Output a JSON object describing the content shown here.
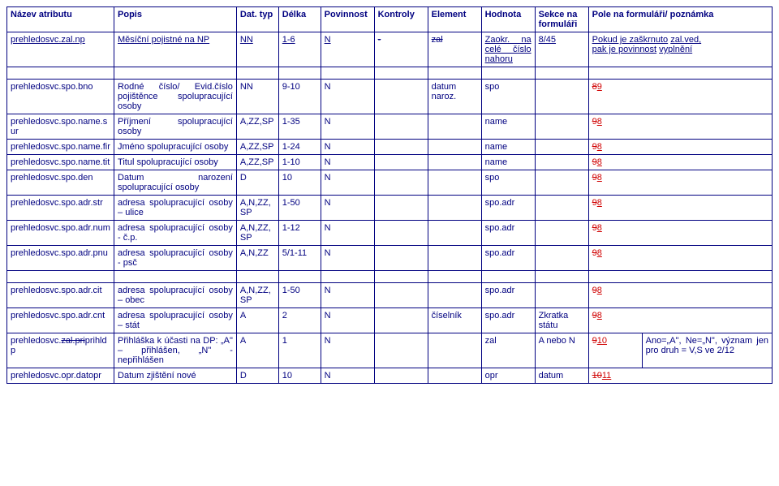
{
  "header": {
    "c1": "Název atributu",
    "c2": "Popis",
    "c3": "Dat. typ",
    "c4": "Délka",
    "c5": "Povinnost",
    "c6": "Kontroly",
    "c7": "Element",
    "c8": "Hodnota",
    "c9_line1": "Sekce na",
    "c9_line2": "formuláři",
    "c10_line1": "Pole na formuláři/",
    "c10_line2": "poznámka"
  },
  "r0": {
    "name": "prehledosvc.zal.np",
    "popis": "Měsíční pojistné na NP",
    "typ": "NN",
    "delka": "1-6",
    "pov": "N",
    "kont_strike": "-",
    "elem_strike": "zal",
    "hod_a": "Zaokr. na",
    "hod_b": "celé číslo",
    "hod_c": "nahoru",
    "sekce": "8/45",
    "pole_a": "Pokud je zaškrnuto",
    "pole_b": "zal.ved,",
    "pole_c": "pak je povinnost",
    "pole_d": "vyplnění"
  },
  "r1": {
    "name": "prehledosvc.spo.bno",
    "popis": "Rodné číslo/ Evid.číslo pojištěnce spolupracující osoby",
    "typ": "NN",
    "delka": "9-10",
    "pov": "N",
    "elem": "datum naroz.",
    "hod": "spo",
    "sekce_s": "8",
    "sekce_n": "9"
  },
  "r2": {
    "name": "prehledosvc.spo.name.sur",
    "popis": "Příjmení spolupracující osoby",
    "typ": "A,ZZ,SP",
    "delka": "1-35",
    "pov": "N",
    "hod": "name",
    "pole_s": "9",
    "pole_n": "8"
  },
  "r3": {
    "name": "prehledosvc.spo.name.fir",
    "popis": "Jméno spolupracující osoby",
    "typ": "A,ZZ,SP",
    "delka": "1-24",
    "pov": "N",
    "hod": "name",
    "pole_s": "9",
    "pole_n": "8"
  },
  "r4": {
    "name": "prehledosvc.spo.name.tit",
    "popis": "Titul spolupracující osoby",
    "typ": "A,ZZ,SP",
    "delka": "1-10",
    "pov": "N",
    "hod": "name",
    "pole_s": "9",
    "pole_n": "8"
  },
  "r5": {
    "name": "prehledosvc.spo.den",
    "popis": "Datum narození spolupracující osoby",
    "typ": "D",
    "delka": "10",
    "pov": "N",
    "hod": "spo",
    "pole_s": "9",
    "pole_n": "8"
  },
  "r6": {
    "name": "prehledosvc.spo.adr.str",
    "popis": "adresa spolupracující osoby – ulice",
    "typ": "A,N,ZZ,SP",
    "delka": "1-50",
    "pov": "N",
    "hod": "spo.adr",
    "pole_s": "9",
    "pole_n": "8"
  },
  "r7": {
    "name": "prehledosvc.spo.adr.num",
    "popis": "adresa spolupracující osoby - č.p.",
    "typ": "A,N,ZZ,SP",
    "delka": "1-12",
    "pov": "N",
    "hod": "spo.adr",
    "pole_s": "9",
    "pole_n": "8"
  },
  "r8": {
    "name": "prehledosvc.spo.adr.pnu",
    "popis": "adresa spolupracující osoby - psč",
    "typ": "A,N,ZZ",
    "delka": "5/1-11",
    "pov": "N",
    "hod": "spo.adr",
    "pole_s": "9",
    "pole_n": "8"
  },
  "r9": {
    "name": "prehledosvc.spo.adr.cit",
    "popis": "adresa spolupracující osoby – obec",
    "typ": "A,N,ZZ,SP",
    "delka": "1-50",
    "pov": "N",
    "hod": "spo.adr",
    "pole_s": "9",
    "pole_n": "8"
  },
  "r10": {
    "name": "prehledosvc.spo.adr.cnt",
    "popis": "adresa spolupracující osoby – stát",
    "typ": "A",
    "delka": "2",
    "pov": "N",
    "elem": "číselník",
    "hod": "spo.adr",
    "sekce": "Zkratka státu",
    "pole_s": "9",
    "pole_n": "8"
  },
  "r11": {
    "name_pre": "prehledosvc.",
    "name_strike": "zal.pri",
    "name_post": "prihldp",
    "popis": "Přihláška k účasti na DP: „A\" – přihlášen, „N\" - nepřihlášen",
    "typ": "A",
    "delka": "1",
    "pov": "N",
    "hod": "zal",
    "sekce": "A nebo N",
    "pole_s": "9",
    "pole_n": "10",
    "note": "Ano=„A\", Ne=„N\", význam jen pro druh = V,S ve 2/12"
  },
  "r12": {
    "name": "prehledosvc.opr.datopr",
    "popis": "Datum zjištění nové",
    "typ": "D",
    "delka": "10",
    "pov": "N",
    "hod": "opr",
    "sekce": "datum",
    "pole_s": "10",
    "pole_n": "11"
  }
}
